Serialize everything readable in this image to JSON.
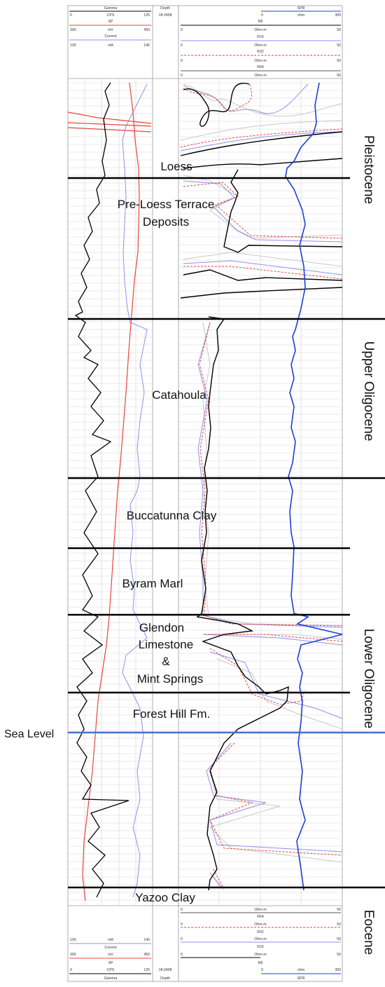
{
  "header": {
    "gamma": {
      "name": "Gamma",
      "min": "0",
      "unit": "CPS",
      "max": "125"
    },
    "sp": {
      "name": "SP",
      "min": "300",
      "unit": "mV",
      "max": "450"
    },
    "current": {
      "name": "Current",
      "min": "100",
      "unit": "mA",
      "max": "140"
    },
    "depth": {
      "name": "Depth",
      "scale": "1ft:240ft"
    },
    "spr": {
      "name": "SPR",
      "min": "0",
      "unit": "ohm",
      "max": "300"
    },
    "r8": {
      "name": "R8",
      "min": "0",
      "unit": "Ohm-m",
      "max": "50"
    },
    "r16": {
      "name": "R16",
      "min": "0",
      "unit": "Ohm-m",
      "max": "50"
    },
    "r32": {
      "name": "R32",
      "min": "0",
      "unit": "Ohm-m",
      "max": "50"
    },
    "r64": {
      "name": "R64",
      "min": "0",
      "unit": "Ohm-m",
      "max": "50"
    }
  },
  "units": [
    {
      "name": "Loess"
    },
    {
      "name": "Pre-Loess Terrace"
    },
    {
      "name": "Deposits"
    },
    {
      "name": "Catahoula"
    },
    {
      "name": "Buccatunna Clay"
    },
    {
      "name": "Byram Marl"
    },
    {
      "name": "Glendon"
    },
    {
      "name": "Limestone"
    },
    {
      "name": "&"
    },
    {
      "name": "Mint Springs"
    },
    {
      "name": "Forest Hill Fm."
    },
    {
      "name": "Yazoo Clay"
    }
  ],
  "epochs": [
    "Pleistocene",
    "Upper Oligocene",
    "Lower Oligocene",
    "Eocene"
  ],
  "sea_level": "Sea Level",
  "colors": {
    "gamma": "#000000",
    "sp": "#e8453c",
    "current": "#8f8ff0",
    "spr": "#1f3fd6",
    "r8": "#000000",
    "r16": "#8f8ff0",
    "r32": "#e8453c",
    "r64": "#c8c8c8",
    "sea_level": "#4472c4",
    "grid": "#d6d6d6"
  }
}
